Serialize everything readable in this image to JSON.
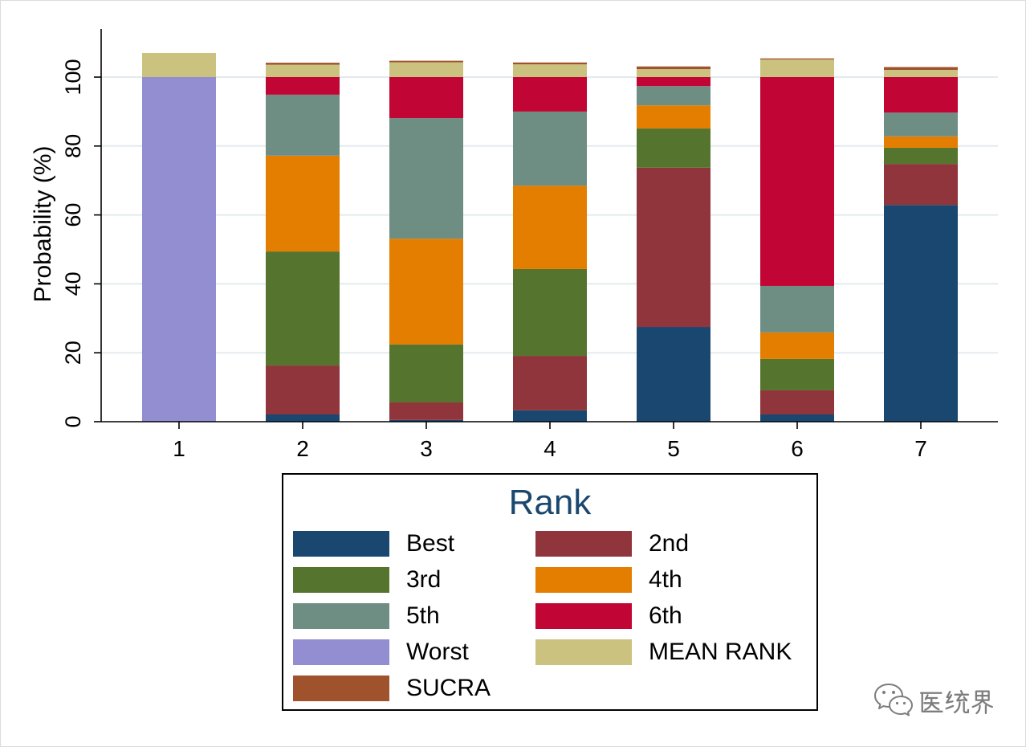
{
  "chart_data": {
    "type": "bar",
    "stacked": true,
    "ylabel": "Probability (%)",
    "ylim": [
      0,
      114
    ],
    "yticks": [
      0,
      20,
      40,
      60,
      80,
      100
    ],
    "grid": true,
    "gridline_color": "#e3ebee",
    "axis_color": "#000000",
    "categories": [
      "1",
      "2",
      "3",
      "4",
      "5",
      "6",
      "7"
    ],
    "series": [
      {
        "name": "Best",
        "color": "#1a476f",
        "values": [
          0,
          2.1,
          0.5,
          3.3,
          27.5,
          2.1,
          62.9
        ]
      },
      {
        "name": "2nd",
        "color": "#90353b",
        "values": [
          0,
          14.2,
          5.1,
          15.8,
          46.2,
          7.0,
          11.9
        ]
      },
      {
        "name": "3rd",
        "color": "#55752f",
        "values": [
          0,
          33.1,
          16.8,
          25.2,
          11.4,
          9.1,
          4.7
        ]
      },
      {
        "name": "4th",
        "color": "#e37e00",
        "values": [
          0,
          27.8,
          30.7,
          24.2,
          6.7,
          7.7,
          3.3
        ]
      },
      {
        "name": "5th",
        "color": "#6e8e84",
        "values": [
          0,
          17.7,
          35.0,
          21.5,
          5.6,
          13.5,
          6.9
        ]
      },
      {
        "name": "6th",
        "color": "#c10534",
        "values": [
          0,
          5.1,
          11.9,
          10.0,
          2.6,
          60.6,
          10.3
        ]
      },
      {
        "name": "Worst",
        "color": "#938dd2",
        "values": [
          100,
          0,
          0,
          0,
          0,
          0,
          0
        ]
      },
      {
        "name": "MEAN RANK",
        "color": "#cac27e",
        "values": [
          7.0,
          3.6,
          4.3,
          3.7,
          2.3,
          5.1,
          2.1
        ]
      },
      {
        "name": "SUCRA",
        "color": "#a0522d",
        "values": [
          0,
          0.57,
          0.45,
          0.54,
          0.79,
          0.32,
          0.82
        ]
      }
    ],
    "legend": {
      "title": "Rank",
      "columns": 2
    },
    "legend_position": "bottom"
  },
  "watermark": {
    "text": "医统界",
    "icon": "wechat-icon",
    "color": "#7d7d7d"
  }
}
